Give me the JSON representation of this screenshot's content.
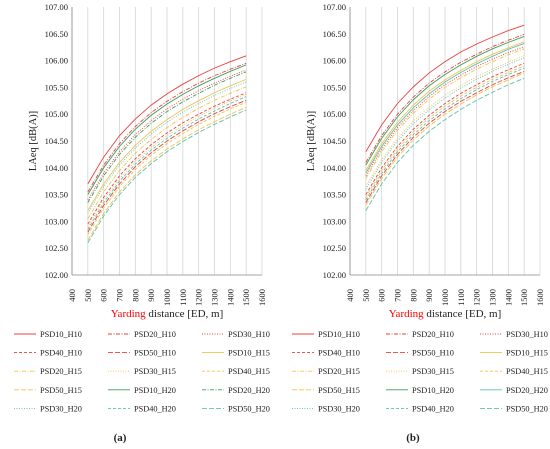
{
  "figure": {
    "panel_labels": [
      "(a)",
      "(b)"
    ]
  },
  "chart_data": [
    {
      "type": "line",
      "panel": "(a)",
      "ylabel": "LAeq [dB(A)]",
      "xlabel_highlight": "Yarding",
      "xlabel_rest": " distance [ED, m]",
      "xlabel_highlight_color": "#ff0000",
      "xlim": [
        400,
        1600
      ],
      "ylim": [
        102.0,
        107.0
      ],
      "xticks": [
        "400",
        "500",
        "600",
        "700",
        "800",
        "900",
        "1000",
        "1100",
        "1200",
        "1300",
        "1400",
        "1500",
        "1600"
      ],
      "yticks": [
        "102.00",
        "102.50",
        "103.00",
        "103.50",
        "104.00",
        "104.50",
        "105.00",
        "105.50",
        "106.00",
        "106.50",
        "107.00"
      ],
      "grid": "vertical",
      "legend_position": "bottom",
      "x": [
        500,
        600,
        700,
        800,
        900,
        1000,
        1100,
        1200,
        1300,
        1400,
        1500
      ],
      "series": [
        {
          "name": "PSD10_H10",
          "color": "#e8403c",
          "dash": "solid",
          "values": [
            103.7,
            104.2,
            104.6,
            104.91,
            105.17,
            105.38,
            105.56,
            105.72,
            105.86,
            105.98,
            106.09
          ]
        },
        {
          "name": "PSD20_H10",
          "color": "#e8403c",
          "dash": "dashdot",
          "values": [
            103.55,
            104.05,
            104.45,
            104.77,
            105.03,
            105.24,
            105.42,
            105.58,
            105.72,
            105.84,
            105.95
          ]
        },
        {
          "name": "PSD30_H10",
          "color": "#e8403c",
          "dash": "dot",
          "values": [
            103.4,
            103.9,
            104.3,
            104.62,
            104.88,
            105.1,
            105.28,
            105.44,
            105.58,
            105.71,
            105.82
          ]
        },
        {
          "name": "PSD40_H10",
          "color": "#e8403c",
          "dash": "dash",
          "values": [
            102.95,
            103.45,
            103.85,
            104.17,
            104.43,
            104.65,
            104.84,
            105.0,
            105.15,
            105.28,
            105.4
          ]
        },
        {
          "name": "PSD50_H10",
          "color": "#e8403c",
          "dash": "longdash",
          "values": [
            102.8,
            103.3,
            103.7,
            104.02,
            104.28,
            104.5,
            104.69,
            104.86,
            105.01,
            105.14,
            105.26
          ]
        },
        {
          "name": "PSD10_H15",
          "color": "#f2c14e",
          "dash": "solid",
          "values": [
            103.2,
            103.7,
            104.1,
            104.42,
            104.68,
            104.9,
            105.09,
            105.25,
            105.4,
            105.53,
            105.65
          ]
        },
        {
          "name": "PSD20_H15",
          "color": "#f2c14e",
          "dash": "dashdot",
          "values": [
            103.05,
            103.55,
            103.95,
            104.27,
            104.53,
            104.75,
            104.94,
            105.11,
            105.26,
            105.39,
            105.51
          ]
        },
        {
          "name": "PSD30_H15",
          "color": "#f2c14e",
          "dash": "dot",
          "values": [
            102.9,
            103.4,
            103.8,
            104.12,
            104.38,
            104.6,
            104.79,
            104.96,
            105.11,
            105.25,
            105.37
          ]
        },
        {
          "name": "PSD40_H15",
          "color": "#f2c14e",
          "dash": "dash",
          "values": [
            102.75,
            103.25,
            103.65,
            103.97,
            104.23,
            104.45,
            104.64,
            104.81,
            104.96,
            105.1,
            105.22
          ]
        },
        {
          "name": "PSD50_H15",
          "color": "#f2c14e",
          "dash": "longdash",
          "values": [
            102.65,
            103.15,
            103.55,
            103.87,
            104.13,
            104.35,
            104.54,
            104.71,
            104.86,
            105.0,
            105.13
          ]
        },
        {
          "name": "PSD10_H20",
          "color": "#3a9a5b",
          "dash": "solid",
          "values": [
            103.5,
            104.0,
            104.4,
            104.72,
            104.98,
            105.19,
            105.37,
            105.53,
            105.67,
            105.8,
            105.92
          ]
        },
        {
          "name": "PSD20_H20",
          "color": "#3a9a5b",
          "dash": "dashdot",
          "values": [
            103.35,
            103.85,
            104.25,
            104.57,
            104.83,
            105.05,
            105.23,
            105.39,
            105.54,
            105.67,
            105.79
          ]
        },
        {
          "name": "PSD30_H20",
          "color": "#5cc0b0",
          "dash": "dot",
          "values": [
            103.15,
            103.65,
            104.05,
            104.37,
            104.63,
            104.85,
            105.04,
            105.2,
            105.35,
            105.48,
            105.6
          ]
        },
        {
          "name": "PSD40_H20",
          "color": "#5cc0b0",
          "dash": "dash",
          "values": [
            102.85,
            103.35,
            103.75,
            104.07,
            104.33,
            104.55,
            104.74,
            104.91,
            105.06,
            105.2,
            105.33
          ]
        },
        {
          "name": "PSD50_H20",
          "color": "#5cc0b0",
          "dash": "longdash",
          "values": [
            102.6,
            103.1,
            103.5,
            103.82,
            104.08,
            104.3,
            104.49,
            104.66,
            104.81,
            104.95,
            105.08
          ]
        }
      ]
    },
    {
      "type": "line",
      "panel": "(b)",
      "ylabel": "LAeq [dB(A)]",
      "xlabel_highlight": "Yarding",
      "xlabel_rest": " distance [ED, m]",
      "xlabel_highlight_color": "#ff0000",
      "xlim": [
        400,
        1600
      ],
      "ylim": [
        102.0,
        107.0
      ],
      "xticks": [
        "400",
        "500",
        "600",
        "700",
        "800",
        "900",
        "1000",
        "1100",
        "1200",
        "1300",
        "1400",
        "1500",
        "1600"
      ],
      "yticks": [
        "102.00",
        "102.50",
        "103.00",
        "103.50",
        "104.00",
        "104.50",
        "105.00",
        "105.50",
        "106.00",
        "106.50",
        "107.00"
      ],
      "grid": "vertical",
      "legend_position": "bottom",
      "x": [
        500,
        600,
        700,
        800,
        900,
        1000,
        1100,
        1200,
        1300,
        1400,
        1500
      ],
      "series": [
        {
          "name": "PSD10_H10",
          "color": "#e8403c",
          "dash": "solid",
          "values": [
            104.3,
            104.8,
            105.2,
            105.51,
            105.77,
            105.98,
            106.16,
            106.31,
            106.44,
            106.56,
            106.66
          ]
        },
        {
          "name": "PSD20_H10",
          "color": "#e8403c",
          "dash": "dashdot",
          "values": [
            104.1,
            104.6,
            105.0,
            105.32,
            105.58,
            105.79,
            105.97,
            106.12,
            106.26,
            106.38,
            106.49
          ]
        },
        {
          "name": "PSD30_H10",
          "color": "#e8403c",
          "dash": "dot",
          "values": [
            103.85,
            104.35,
            104.75,
            105.07,
            105.33,
            105.55,
            105.73,
            105.89,
            106.03,
            106.15,
            106.26
          ]
        },
        {
          "name": "PSD40_H10",
          "color": "#e8403c",
          "dash": "dash",
          "values": [
            103.5,
            104.0,
            104.4,
            104.72,
            104.98,
            105.2,
            105.39,
            105.55,
            105.7,
            105.83,
            105.95
          ]
        },
        {
          "name": "PSD50_H10",
          "color": "#e8403c",
          "dash": "longdash",
          "values": [
            103.35,
            103.85,
            104.25,
            104.57,
            104.83,
            105.05,
            105.24,
            105.4,
            105.55,
            105.68,
            105.8
          ]
        },
        {
          "name": "PSD10_H15",
          "color": "#f2c14e",
          "dash": "solid",
          "values": [
            103.95,
            104.45,
            104.85,
            105.17,
            105.43,
            105.64,
            105.82,
            105.98,
            106.12,
            106.24,
            106.35
          ]
        },
        {
          "name": "PSD20_H15",
          "color": "#f2c14e",
          "dash": "dashdot",
          "values": [
            103.8,
            104.3,
            104.7,
            105.02,
            105.28,
            105.5,
            105.68,
            105.84,
            105.98,
            106.11,
            106.22
          ]
        },
        {
          "name": "PSD30_H15",
          "color": "#f2c14e",
          "dash": "dot",
          "values": [
            103.65,
            104.15,
            104.55,
            104.87,
            105.13,
            105.35,
            105.54,
            105.7,
            105.84,
            105.97,
            106.09
          ]
        },
        {
          "name": "PSD40_H15",
          "color": "#f2c14e",
          "dash": "dash",
          "values": [
            103.45,
            103.95,
            104.35,
            104.67,
            104.93,
            105.15,
            105.34,
            105.5,
            105.65,
            105.78,
            105.9
          ]
        },
        {
          "name": "PSD50_H15",
          "color": "#f2c14e",
          "dash": "longdash",
          "values": [
            103.3,
            103.8,
            104.2,
            104.52,
            104.78,
            105.0,
            105.19,
            105.36,
            105.51,
            105.64,
            105.77
          ]
        },
        {
          "name": "PSD10_H20",
          "color": "#3a9a5b",
          "dash": "solid",
          "values": [
            104.05,
            104.55,
            104.95,
            105.27,
            105.53,
            105.74,
            105.92,
            106.08,
            106.22,
            106.34,
            106.45
          ]
        },
        {
          "name": "PSD20_H20",
          "color": "#5cc0b0",
          "dash": "solid",
          "values": [
            103.9,
            104.4,
            104.8,
            105.12,
            105.38,
            105.6,
            105.78,
            105.94,
            106.08,
            106.21,
            106.32
          ]
        },
        {
          "name": "PSD30_H20",
          "color": "#5cc0b0",
          "dash": "dot",
          "values": [
            103.6,
            104.1,
            104.5,
            104.82,
            105.08,
            105.3,
            105.49,
            105.65,
            105.8,
            105.93,
            106.05
          ]
        },
        {
          "name": "PSD40_H20",
          "color": "#5cc0b0",
          "dash": "dash",
          "values": [
            103.4,
            103.9,
            104.3,
            104.62,
            104.88,
            105.1,
            105.29,
            105.46,
            105.61,
            105.74,
            105.86
          ]
        },
        {
          "name": "PSD50_H20",
          "color": "#5cc0b0",
          "dash": "longdash",
          "values": [
            103.2,
            103.7,
            104.1,
            104.42,
            104.68,
            104.9,
            105.09,
            105.26,
            105.41,
            105.55,
            105.67
          ]
        }
      ]
    }
  ]
}
